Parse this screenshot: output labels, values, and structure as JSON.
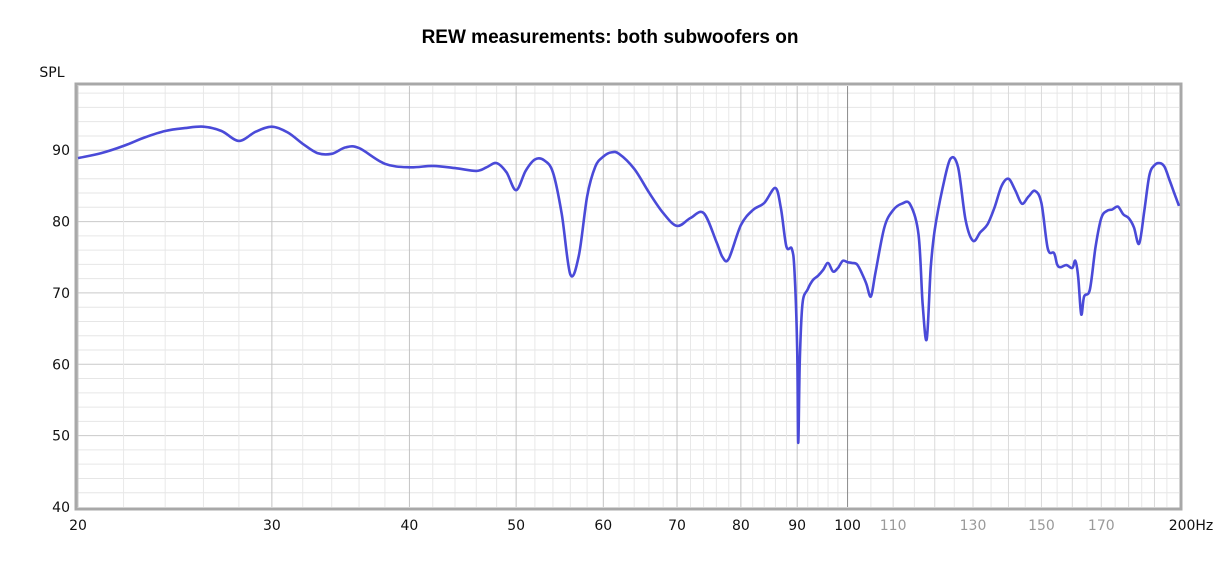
{
  "chart_data": {
    "type": "line",
    "title": "REW measurements: both subwoofers on",
    "ylabel": "SPL",
    "x_scale": "log",
    "xlim": [
      20,
      200
    ],
    "ylim": [
      40,
      99
    ],
    "grid": true,
    "y_ticks": [
      40,
      50,
      60,
      70,
      80,
      90
    ],
    "x_ticks": [
      {
        "value": 20,
        "label": "20",
        "style": "major"
      },
      {
        "value": 30,
        "label": "30",
        "style": "major"
      },
      {
        "value": 40,
        "label": "40",
        "style": "major"
      },
      {
        "value": 50,
        "label": "50",
        "style": "major"
      },
      {
        "value": 60,
        "label": "60",
        "style": "major"
      },
      {
        "value": 70,
        "label": "70",
        "style": "major"
      },
      {
        "value": 80,
        "label": "80",
        "style": "major"
      },
      {
        "value": 90,
        "label": "90",
        "style": "major"
      },
      {
        "value": 100,
        "label": "100",
        "style": "major"
      },
      {
        "value": 110,
        "label": "110",
        "style": "minor"
      },
      {
        "value": 130,
        "label": "130",
        "style": "minor"
      },
      {
        "value": 150,
        "label": "150",
        "style": "minor"
      },
      {
        "value": 170,
        "label": "170",
        "style": "minor"
      },
      {
        "value": 200,
        "label": "200Hz",
        "style": "major"
      }
    ],
    "series": [
      {
        "color": "#4a4ad8",
        "x": [
          20,
          21,
          22,
          23,
          24,
          25,
          26,
          27,
          28,
          29,
          30,
          31,
          32,
          33,
          34,
          35,
          36,
          38,
          40,
          42,
          44,
          46,
          47,
          48,
          49,
          50,
          51,
          52,
          53,
          54,
          55,
          56,
          57,
          58,
          59,
          60,
          61,
          62,
          64,
          66,
          68,
          70,
          72,
          74,
          76,
          77,
          78,
          80,
          82,
          84,
          86,
          87,
          88,
          89,
          89.5,
          90,
          90.2,
          90.5,
          91,
          92,
          93,
          94,
          95,
          96,
          97,
          98,
          99,
          100,
          101,
          102,
          103,
          104,
          105,
          106,
          108,
          110,
          112,
          114,
          116,
          117,
          118,
          119,
          120,
          122,
          124,
          126,
          128,
          130,
          132,
          134,
          136,
          138,
          140,
          142,
          144,
          146,
          148,
          150,
          152,
          154,
          155,
          156,
          158,
          160,
          161,
          162,
          163,
          164,
          166,
          168,
          170,
          172,
          174,
          176,
          178,
          180,
          182,
          184,
          186,
          188,
          190,
          192,
          194,
          196,
          198,
          200
        ],
        "y": [
          88.9,
          89.6,
          90.6,
          91.8,
          92.7,
          93.1,
          93.3,
          92.7,
          91.3,
          92.6,
          93.3,
          92.5,
          90.9,
          89.6,
          89.5,
          90.4,
          90.3,
          88.1,
          87.6,
          87.8,
          87.5,
          87.1,
          87.6,
          88.2,
          86.9,
          84.4,
          87.1,
          88.7,
          88.6,
          86.9,
          81.1,
          72.6,
          75.2,
          83.5,
          87.7,
          89.1,
          89.7,
          89.5,
          87.4,
          84.1,
          81.2,
          79.4,
          80.5,
          81.2,
          77.2,
          75.0,
          74.8,
          79.5,
          81.6,
          82.6,
          84.7,
          81.8,
          76.5,
          76.2,
          73.0,
          62.0,
          49.0,
          60.5,
          68.5,
          70.5,
          71.8,
          72.4,
          73.2,
          74.2,
          73.0,
          73.5,
          74.5,
          74.3,
          74.2,
          74.0,
          72.8,
          71.3,
          69.5,
          72.8,
          79.2,
          81.6,
          82.5,
          82.4,
          78.2,
          68.5,
          63.5,
          73.5,
          78.8,
          84.7,
          88.8,
          87.6,
          80.2,
          77.3,
          78.5,
          79.6,
          82.0,
          85.0,
          86.0,
          84.4,
          82.5,
          83.5,
          84.3,
          82.6,
          76.2,
          75.6,
          74.0,
          73.6,
          73.9,
          73.5,
          74.5,
          72.2,
          67.0,
          69.5,
          70.5,
          76.5,
          80.5,
          81.5,
          81.7,
          82.1,
          81.0,
          80.5,
          79.2,
          76.9,
          81.5,
          86.5,
          87.9,
          88.2,
          87.7,
          85.9,
          84.0,
          82.2
        ]
      }
    ]
  }
}
